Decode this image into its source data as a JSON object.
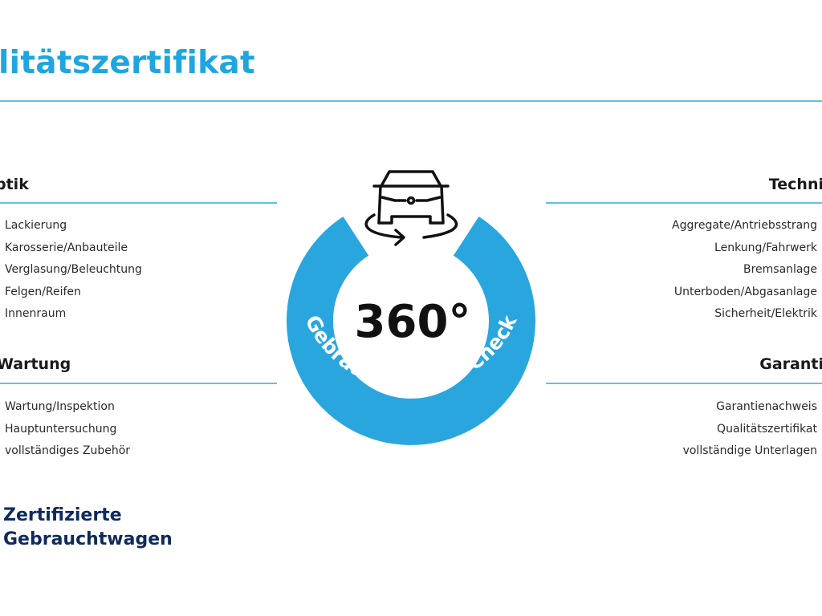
{
  "title": "litätszertifikat",
  "colors": {
    "accent": "#1fa6e0",
    "ring": "#2aa6df",
    "rule": "#5fc0e4",
    "brand": "#0f2a5c"
  },
  "sections": {
    "optik": {
      "heading": "ptik",
      "items": [
        "Lackierung",
        "Karosserie/Anbauteile",
        "Verglasung/Beleuchtung",
        "Felgen/Reifen",
        "Innenraum"
      ]
    },
    "wartung": {
      "heading": "Wartung",
      "items": [
        "Wartung/Inspektion",
        "Hauptuntersuchung",
        "vollständiges Zubehör"
      ]
    },
    "technik": {
      "heading": "Techni",
      "items": [
        "Aggregate/Antriebsstrang",
        "Lenkung/Fahrwerk",
        "Bremsanlage",
        "Unterboden/Abgasanlage",
        "Sicherheit/Elektrik"
      ]
    },
    "garantie": {
      "heading": "Garanti",
      "items": [
        "Garantienachweis",
        "Qualitätszertifikat",
        "vollständige Unterlagen"
      ]
    }
  },
  "badge": {
    "degrees": "360°",
    "ring_text": "Gebrauchtwagen-Check",
    "icon": "car-rotate-icon"
  },
  "brand": {
    "line1": "Zertifizierte",
    "line2": "Gebrauchtwagen"
  }
}
